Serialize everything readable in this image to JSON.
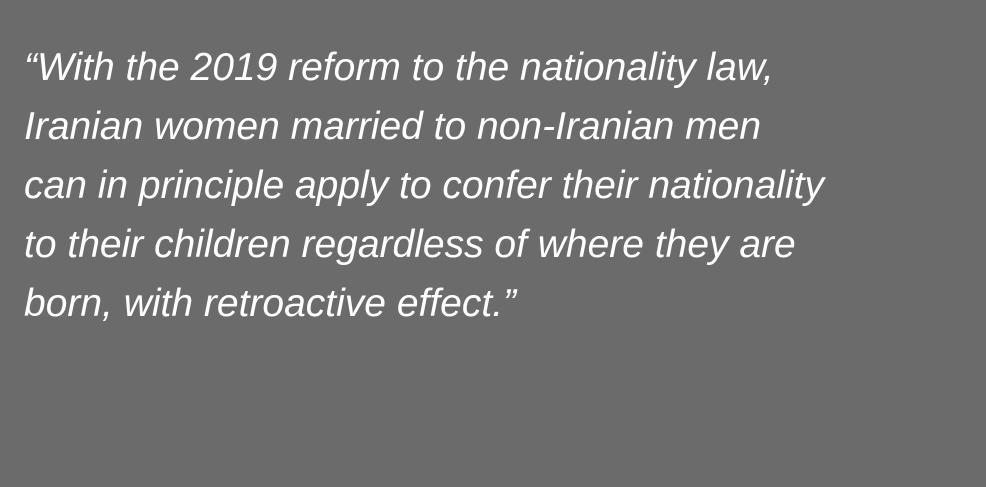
{
  "quote": {
    "lines": [
      "“With the 2019 reform to the nationality law,",
      "Iranian women married to non-Iranian men",
      "can in principle apply to confer their nationality",
      "to their children regardless of where they are",
      "born, with retroactive effect.”"
    ]
  },
  "colors": {
    "background": "#6b6b6b",
    "text": "#ffffff"
  }
}
